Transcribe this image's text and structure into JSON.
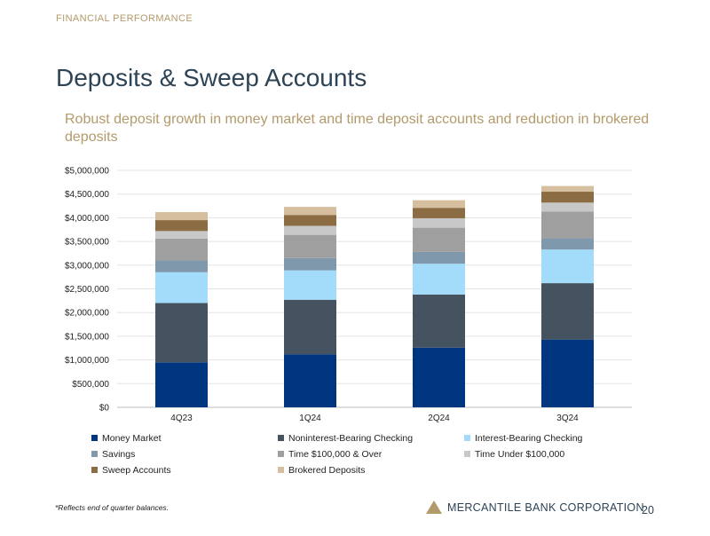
{
  "header": {
    "section_label": "FINANCIAL PERFORMANCE",
    "title": "Deposits & Sweep Accounts",
    "subtitle": "Robust deposit growth in money market and time deposit accounts and reduction in brokered deposits"
  },
  "chart_data": {
    "type": "bar",
    "stacked": true,
    "title": "",
    "xlabel": "",
    "ylabel": "",
    "ylim": [
      0,
      5000000
    ],
    "y_ticks": [
      0,
      500000,
      1000000,
      1500000,
      2000000,
      2500000,
      3000000,
      3500000,
      4000000,
      4500000,
      5000000
    ],
    "y_tick_labels": [
      "$0",
      "$500,000",
      "$1,000,000",
      "$1,500,000",
      "$2,000,000",
      "$2,500,000",
      "$3,000,000",
      "$3,500,000",
      "$4,000,000",
      "$4,500,000",
      "$5,000,000"
    ],
    "grid": true,
    "legend_position": "bottom",
    "categories": [
      "4Q23",
      "1Q24",
      "2Q24",
      "3Q24"
    ],
    "series": [
      {
        "name": "Money Market",
        "color": "#003580",
        "values": [
          950000,
          1120000,
          1260000,
          1430000
        ]
      },
      {
        "name": "Noninterest-Bearing Checking",
        "color": "#44535f",
        "values": [
          1250000,
          1150000,
          1120000,
          1190000
        ]
      },
      {
        "name": "Interest-Bearing Checking",
        "color": "#a3dcfa",
        "values": [
          650000,
          620000,
          650000,
          710000
        ]
      },
      {
        "name": "Savings",
        "color": "#7f98ac",
        "values": [
          250000,
          260000,
          250000,
          240000
        ]
      },
      {
        "name": "Time $100,000 & Over",
        "color": "#9f9f9f",
        "values": [
          460000,
          490000,
          510000,
          560000
        ]
      },
      {
        "name": "Time Under $100,000",
        "color": "#c8c8c8",
        "values": [
          160000,
          190000,
          200000,
          190000
        ]
      },
      {
        "name": "Sweep Accounts",
        "color": "#8b6c43",
        "values": [
          230000,
          230000,
          220000,
          230000
        ]
      },
      {
        "name": "Brokered Deposits",
        "color": "#d5bf9e",
        "values": [
          170000,
          170000,
          160000,
          120000
        ]
      }
    ]
  },
  "footer": {
    "footnote": "*Reflects end of quarter balances.",
    "company": "MERCANTILE BANK CORPORATION",
    "page_number": "20"
  }
}
